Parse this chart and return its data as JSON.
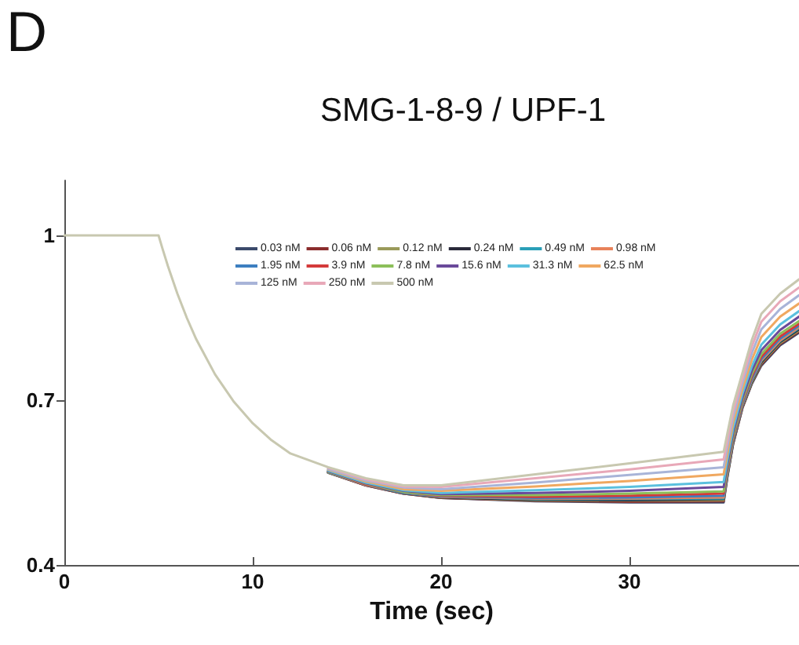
{
  "chart_data": {
    "type": "line",
    "title": "SMG-1-8-9 / UPF-1",
    "xlabel": "Time (sec)",
    "annotations": [
      "D"
    ],
    "x": [
      0,
      5,
      5.2,
      5.5,
      6,
      6.5,
      7,
      8,
      9,
      10,
      11,
      12,
      14,
      16,
      18,
      20,
      25,
      30,
      35,
      35.2,
      35.5,
      36,
      36.5,
      37,
      38,
      39
    ],
    "xlim": [
      0,
      39
    ],
    "xticks": [
      0,
      10,
      20,
      30
    ],
    "ylim": [
      0.4,
      1.1
    ],
    "yticks": [
      0.4,
      0.7,
      1
    ],
    "grid": false,
    "legend": "top",
    "marker": "none",
    "line_style": "solid",
    "series": [
      {
        "name": "0.03 nM",
        "color": "#3b4a6b",
        "values": [
          null,
          null,
          null,
          null,
          null,
          null,
          null,
          null,
          null,
          null,
          null,
          null,
          0.568,
          0.545,
          0.53,
          0.522,
          0.516,
          0.514,
          0.514,
          0.56,
          0.62,
          0.686,
          0.73,
          0.763,
          0.8,
          0.823
        ]
      },
      {
        "name": "0.06 nM",
        "color": "#8b2d2d",
        "values": [
          null,
          null,
          null,
          null,
          null,
          null,
          null,
          null,
          null,
          null,
          null,
          null,
          0.568,
          0.545,
          0.53,
          0.522,
          0.517,
          0.515,
          0.516,
          0.562,
          0.621,
          0.687,
          0.732,
          0.765,
          0.802,
          0.825
        ]
      },
      {
        "name": "0.12 nM",
        "color": "#9a9a5a",
        "values": [
          null,
          null,
          null,
          null,
          null,
          null,
          null,
          null,
          null,
          null,
          null,
          null,
          0.568,
          0.546,
          0.531,
          0.523,
          0.518,
          0.517,
          0.518,
          0.563,
          0.623,
          0.689,
          0.733,
          0.767,
          0.804,
          0.827
        ]
      },
      {
        "name": "0.24 nM",
        "color": "#2a2a3a",
        "values": [
          null,
          null,
          null,
          null,
          null,
          null,
          null,
          null,
          null,
          null,
          null,
          null,
          0.569,
          0.546,
          0.531,
          0.523,
          0.519,
          0.518,
          0.52,
          0.565,
          0.624,
          0.69,
          0.735,
          0.769,
          0.806,
          0.829
        ]
      },
      {
        "name": "0.49 nM",
        "color": "#2a9fb8",
        "values": [
          null,
          null,
          null,
          null,
          null,
          null,
          null,
          null,
          null,
          null,
          null,
          null,
          0.569,
          0.546,
          0.531,
          0.524,
          0.52,
          0.52,
          0.521,
          0.566,
          0.626,
          0.691,
          0.736,
          0.771,
          0.808,
          0.831
        ]
      },
      {
        "name": "0.98 nM",
        "color": "#e8825a",
        "values": [
          null,
          null,
          null,
          null,
          null,
          null,
          null,
          null,
          null,
          null,
          null,
          null,
          0.569,
          0.546,
          0.532,
          0.524,
          0.521,
          0.521,
          0.523,
          0.568,
          0.627,
          0.692,
          0.738,
          0.772,
          0.809,
          0.833
        ]
      },
      {
        "name": "1.95 nM",
        "color": "#3d7fc0",
        "values": [
          null,
          null,
          null,
          null,
          null,
          null,
          null,
          null,
          null,
          null,
          null,
          null,
          0.569,
          0.547,
          0.532,
          0.525,
          0.522,
          0.523,
          0.526,
          0.57,
          0.629,
          0.694,
          0.74,
          0.775,
          0.812,
          0.836
        ]
      },
      {
        "name": "3.9 nM",
        "color": "#d43a3a",
        "values": [
          null,
          null,
          null,
          null,
          null,
          null,
          null,
          null,
          null,
          null,
          null,
          null,
          0.57,
          0.547,
          0.533,
          0.526,
          0.524,
          0.526,
          0.53,
          0.574,
          0.632,
          0.697,
          0.744,
          0.779,
          0.816,
          0.839
        ]
      },
      {
        "name": "7.8 nM",
        "color": "#8cbf5a",
        "values": [
          null,
          null,
          null,
          null,
          null,
          null,
          null,
          null,
          null,
          null,
          null,
          null,
          0.57,
          0.548,
          0.533,
          0.527,
          0.527,
          0.53,
          0.534,
          0.578,
          0.635,
          0.7,
          0.748,
          0.784,
          0.821,
          0.844
        ]
      },
      {
        "name": "15.6 nM",
        "color": "#6a4a9a",
        "values": [
          null,
          null,
          null,
          null,
          null,
          null,
          null,
          null,
          null,
          null,
          null,
          null,
          0.571,
          0.549,
          0.535,
          0.529,
          0.531,
          0.535,
          0.542,
          0.584,
          0.641,
          0.705,
          0.754,
          0.791,
          0.828,
          0.852
        ]
      },
      {
        "name": "31.3 nM",
        "color": "#5bc0de",
        "values": [
          null,
          null,
          null,
          null,
          null,
          null,
          null,
          null,
          null,
          null,
          null,
          null,
          0.572,
          0.55,
          0.536,
          0.531,
          0.536,
          0.542,
          0.551,
          0.592,
          0.648,
          0.712,
          0.762,
          0.801,
          0.838,
          0.862
        ]
      },
      {
        "name": "62.5 nM",
        "color": "#f0a860",
        "values": [
          null,
          null,
          null,
          null,
          null,
          null,
          null,
          null,
          null,
          null,
          null,
          null,
          0.574,
          0.552,
          0.538,
          0.535,
          0.543,
          0.553,
          0.565,
          0.604,
          0.659,
          0.721,
          0.774,
          0.815,
          0.852,
          0.876
        ]
      },
      {
        "name": "125 nM",
        "color": "#a8b4d8",
        "values": [
          null,
          null,
          null,
          null,
          null,
          null,
          null,
          null,
          null,
          null,
          null,
          null,
          0.575,
          0.554,
          0.541,
          0.538,
          0.55,
          0.564,
          0.578,
          0.616,
          0.669,
          0.731,
          0.786,
          0.829,
          0.866,
          0.891
        ]
      },
      {
        "name": "250 nM",
        "color": "#e8a8b8",
        "values": [
          null,
          null,
          null,
          null,
          null,
          null,
          null,
          null,
          null,
          null,
          null,
          null,
          0.577,
          0.556,
          0.543,
          0.542,
          0.558,
          0.574,
          0.592,
          0.628,
          0.68,
          0.74,
          0.798,
          0.843,
          0.88,
          0.905
        ]
      },
      {
        "name": "500 nM",
        "color": "#c8c8b0",
        "values": [
          1,
          1,
          0.977,
          0.944,
          0.894,
          0.85,
          0.811,
          0.747,
          0.697,
          0.658,
          0.627,
          0.603,
          0.578,
          0.558,
          0.545,
          0.545,
          0.565,
          0.585,
          0.606,
          0.64,
          0.69,
          0.75,
          0.81,
          0.857,
          0.894,
          0.92
        ]
      }
    ]
  }
}
